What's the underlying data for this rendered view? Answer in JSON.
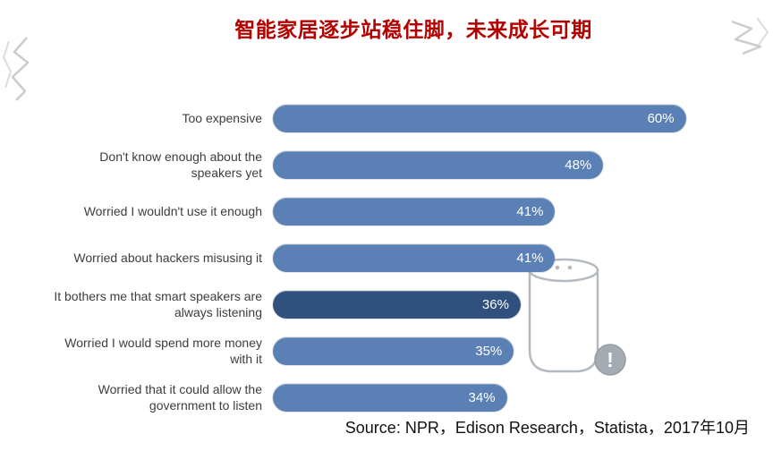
{
  "title": "智能家居逐步站稳住脚，未来成长可期",
  "source": "Source: NPR，Edison Research，Statista，2017年10月",
  "icons": {
    "exclamation": "!"
  },
  "colors": {
    "bar": "#5b80b5",
    "bar_highlight": "#30517e",
    "title_red": "#b30000",
    "label_text": "#3d3d3d",
    "speaker_outline": "#b4bac0",
    "exclamation_fill": "#a5abb2"
  },
  "chart_data": {
    "type": "bar",
    "orientation": "horizontal",
    "title": "智能家居逐步站稳住脚，未来成长可期",
    "categories": [
      "Too expensive",
      "Don't know enough about the speakers yet",
      "Worried I wouldn't use it enough",
      "Worried about hackers misusing it",
      "It bothers me that smart speakers are always listening",
      "Worried I would spend more money with it",
      "Worried that it could allow the government to listen"
    ],
    "values": [
      60,
      48,
      41,
      41,
      36,
      35,
      34
    ],
    "value_labels": [
      "60%",
      "48%",
      "41%",
      "41%",
      "36%",
      "35%",
      "34%"
    ],
    "highlighted_index": 4,
    "xlim": [
      0,
      62
    ],
    "grid": false,
    "legend": "none",
    "source_note": "Source: NPR，Edison Research，Statista，2017年10月"
  }
}
